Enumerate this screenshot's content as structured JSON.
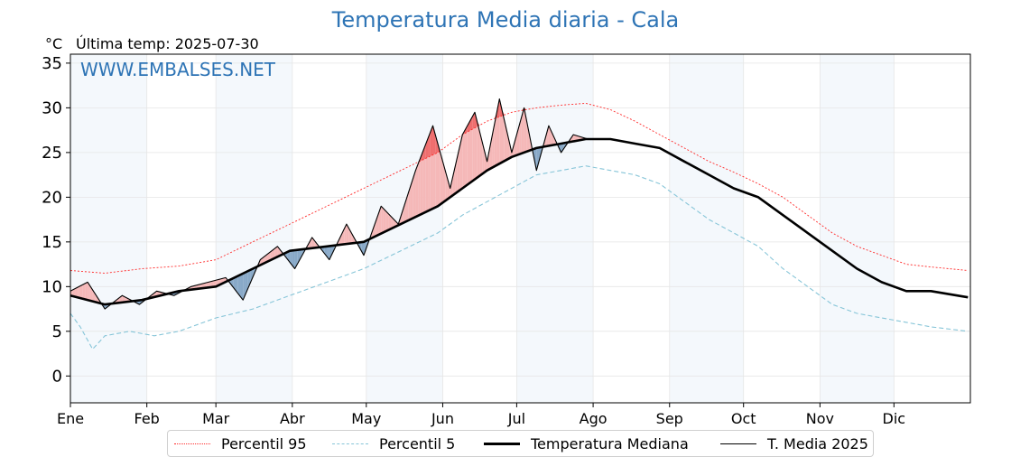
{
  "title": "Temperatura Media diaria - Cala",
  "y_unit": "°C",
  "last_temp_text": "Última temp: 2025-07-30",
  "watermark": "WWW.EMBALSES.NET",
  "colors": {
    "title": "#2e74b5",
    "p95": "#ff2a2a",
    "p5": "#86c5d8",
    "median": "#000000",
    "current": "#000000",
    "above_fill": "#f5b8b8",
    "above_p95_fill": "#ef6e6e",
    "below_fill": "#88a9c8",
    "month_band": "#f4f8fc"
  },
  "legend": [
    {
      "key": "p95",
      "label": "Percentil 95",
      "style": "dotted-red"
    },
    {
      "key": "p5",
      "label": "Percentil 5",
      "style": "dashed-lightblue"
    },
    {
      "key": "median",
      "label": "Temperatura Mediana",
      "style": "thick-black"
    },
    {
      "key": "current",
      "label": "T. Media 2025",
      "style": "thin-black"
    }
  ],
  "chart_data": {
    "type": "line",
    "title": "Temperatura Media diaria - Cala",
    "ylabel": "°C",
    "xlabel": "",
    "ylim": [
      -3,
      36
    ],
    "yticks": [
      0,
      5,
      10,
      15,
      20,
      25,
      30,
      35
    ],
    "months": [
      "Ene",
      "Feb",
      "Mar",
      "Abr",
      "May",
      "Jun",
      "Jul",
      "Ago",
      "Sep",
      "Oct",
      "Nov",
      "Dic"
    ],
    "month_start_days": [
      1,
      32,
      60,
      91,
      121,
      152,
      182,
      213,
      244,
      274,
      305,
      335
    ],
    "xlim_days": [
      1,
      366
    ],
    "grid": true,
    "legend_position": "bottom",
    "series": [
      {
        "name": "Percentil 95",
        "x_day": [
          1,
          15,
          30,
          45,
          60,
          75,
          90,
          105,
          120,
          135,
          150,
          160,
          170,
          180,
          190,
          200,
          210,
          220,
          230,
          240,
          250,
          260,
          270,
          280,
          290,
          300,
          310,
          320,
          330,
          340,
          350,
          365
        ],
        "values": [
          11.8,
          11.5,
          12.0,
          12.3,
          13.0,
          15.0,
          17.0,
          19.0,
          21.0,
          23.0,
          25.0,
          27.0,
          28.5,
          29.5,
          30.0,
          30.3,
          30.5,
          29.8,
          28.5,
          27.0,
          25.5,
          24.0,
          22.8,
          21.5,
          20.0,
          18.0,
          16.0,
          14.5,
          13.5,
          12.5,
          12.2,
          11.8
        ]
      },
      {
        "name": "Percentil 5",
        "x_day": [
          1,
          5,
          10,
          15,
          25,
          35,
          45,
          60,
          75,
          90,
          105,
          120,
          135,
          150,
          160,
          170,
          180,
          190,
          200,
          210,
          220,
          230,
          240,
          250,
          260,
          270,
          280,
          290,
          300,
          310,
          320,
          330,
          340,
          350,
          365
        ],
        "values": [
          7.0,
          5.5,
          3.0,
          4.5,
          5.0,
          4.5,
          5.0,
          6.5,
          7.5,
          9.0,
          10.5,
          12.0,
          14.0,
          16.0,
          18.0,
          19.5,
          21.0,
          22.5,
          23.0,
          23.5,
          23.0,
          22.5,
          21.5,
          19.5,
          17.5,
          16.0,
          14.5,
          12.0,
          10.0,
          8.0,
          7.0,
          6.5,
          6.0,
          5.5,
          5.0
        ]
      },
      {
        "name": "Temperatura Mediana",
        "x_day": [
          1,
          15,
          30,
          45,
          60,
          75,
          90,
          105,
          120,
          135,
          150,
          160,
          170,
          180,
          190,
          200,
          210,
          220,
          230,
          240,
          250,
          260,
          270,
          280,
          290,
          300,
          310,
          320,
          330,
          340,
          350,
          365
        ],
        "values": [
          9.0,
          8.0,
          8.5,
          9.5,
          10.0,
          12.0,
          14.0,
          14.5,
          15.0,
          17.0,
          19.0,
          21.0,
          23.0,
          24.5,
          25.5,
          26.0,
          26.5,
          26.5,
          26.0,
          25.5,
          24.0,
          22.5,
          21.0,
          20.0,
          18.0,
          16.0,
          14.0,
          12.0,
          10.5,
          9.5,
          9.5,
          8.8
        ]
      },
      {
        "name": "T. Media 2025",
        "x_day": [
          1,
          8,
          15,
          22,
          29,
          36,
          43,
          50,
          57,
          64,
          71,
          78,
          85,
          92,
          99,
          106,
          113,
          120,
          127,
          134,
          141,
          148,
          155,
          160,
          165,
          170,
          175,
          180,
          185,
          190,
          195,
          200,
          205,
          211
        ],
        "values": [
          9.5,
          10.5,
          7.5,
          9.0,
          8.0,
          9.5,
          9.0,
          10.0,
          10.5,
          11.0,
          8.5,
          13.0,
          14.5,
          12.0,
          15.5,
          13.0,
          17.0,
          13.5,
          19.0,
          17.0,
          23.0,
          28.0,
          21.0,
          27.0,
          29.5,
          24.0,
          31.0,
          25.0,
          30.0,
          23.0,
          28.0,
          25.0,
          27.0,
          26.5
        ]
      }
    ]
  }
}
